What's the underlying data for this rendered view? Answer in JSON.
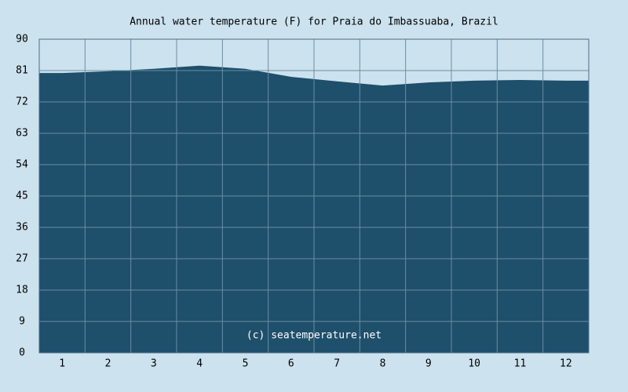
{
  "chart_data": {
    "type": "area",
    "title": "Annual water temperature (F) for Praia do Imbassuaba, Brazil",
    "annotation": "(c) seatemperature.net",
    "categories": [
      "1",
      "2",
      "3",
      "4",
      "5",
      "6",
      "7",
      "8",
      "9",
      "10",
      "11",
      "12"
    ],
    "values": [
      80.3,
      80.8,
      81.5,
      82.4,
      81.5,
      79.2,
      77.9,
      76.7,
      77.6,
      78.1,
      78.3,
      78.1
    ],
    "color": "#1e4f6b",
    "ylim": [
      0,
      90
    ],
    "yticks": [
      0,
      9,
      18,
      27,
      36,
      45,
      54,
      63,
      72,
      81,
      90
    ],
    "grid": true
  }
}
